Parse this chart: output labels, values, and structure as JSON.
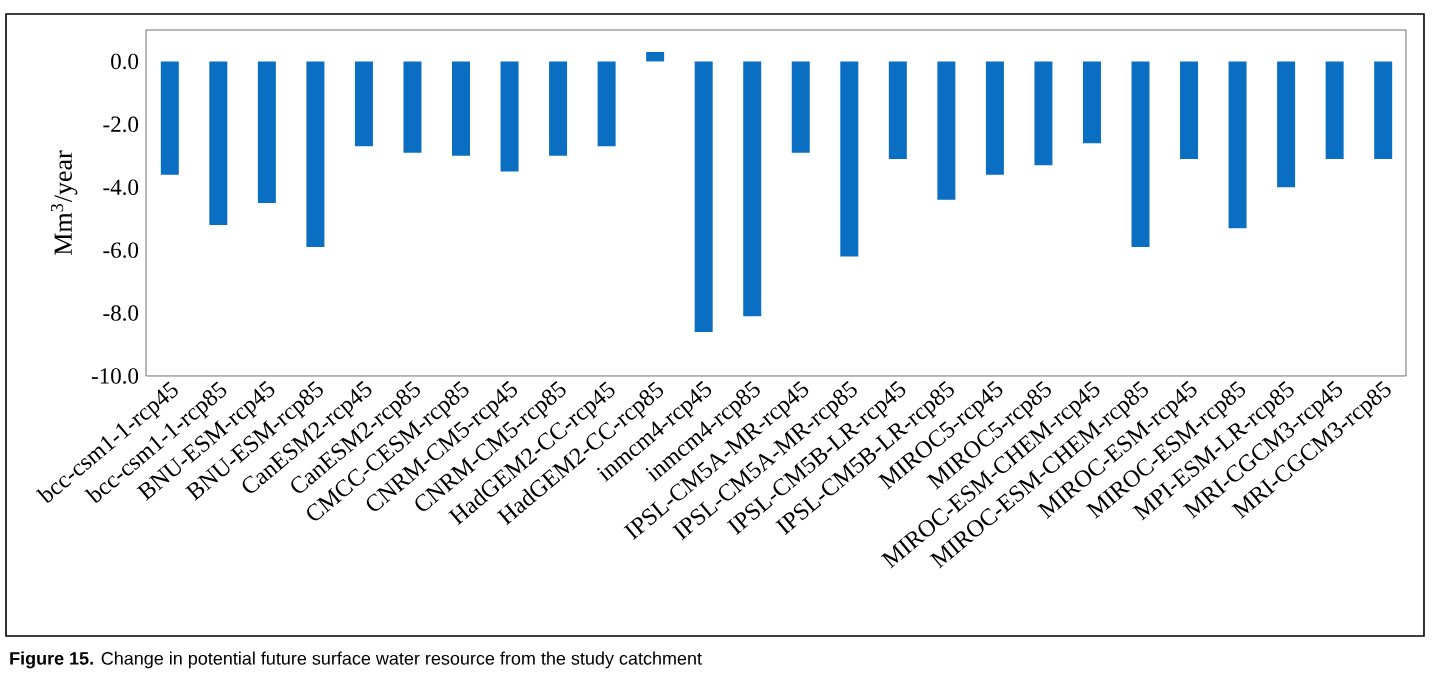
{
  "chart_data": {
    "type": "bar",
    "ylabel": "Mm$^{3}$/year",
    "categories": [
      "bcc-csm1-1-rcp45",
      "bcc-csm1-1-rcp85",
      "BNU-ESM-rcp45",
      "BNU-ESM-rcp85",
      "CanESM2-rcp45",
      "CanESM2-rcp85",
      "CMCC-CESM-rcp85",
      "CNRM-CM5-rcp45",
      "CNRM-CM5-rcp85",
      "HadGEM2-CC-rcp45",
      "HadGEM2-CC-rcp85",
      "inmcm4-rcp45",
      "inmcm4-rcp85",
      "IPSL-CM5A-MR-rcp45",
      "IPSL-CM5A-MR-rcp85",
      "IPSL-CM5B-LR-rcp45",
      "IPSL-CM5B-LR-rcp85",
      "MIROC5-rcp45",
      "MIROC5-rcp85",
      "MIROC-ESM-CHEM-rcp45",
      "MIROC-ESM-CHEM-rcp85",
      "MIROC-ESM-rcp45",
      "MIROC-ESM-rcp85",
      "MPI-ESM-LR-rcp85",
      "MRI-CGCM3-rcp45",
      "MRI-CGCM3-rcp85"
    ],
    "values": [
      -3.6,
      -5.2,
      -4.5,
      -5.9,
      -2.7,
      -2.9,
      -3.0,
      -3.5,
      -3.0,
      -2.7,
      0.3,
      -8.6,
      -8.1,
      -2.9,
      -6.2,
      -3.1,
      -4.4,
      -3.6,
      -3.3,
      -2.6,
      -5.9,
      -3.1,
      -5.3,
      -4.0,
      -3.1,
      -3.1
    ],
    "color": "#0a6fc2",
    "ylim": [
      -10,
      1
    ],
    "yticks": [
      {
        "value": 0,
        "label": "0.0"
      },
      {
        "value": -2,
        "label": "-2.0"
      },
      {
        "value": -4,
        "label": "-4.0"
      },
      {
        "value": -6,
        "label": "-6.0"
      },
      {
        "value": -8,
        "label": "-8.0"
      },
      {
        "value": -10,
        "label": "-10.0"
      }
    ],
    "grid": false,
    "annotations": [
      "**Figure 15.** Change in potential future surface water resource from the study catchment"
    ]
  }
}
